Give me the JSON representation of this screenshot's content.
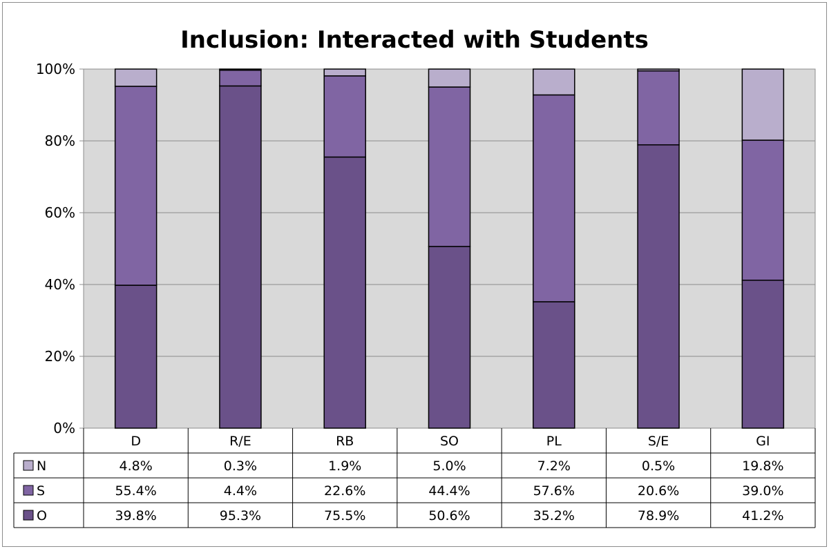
{
  "chart_data": {
    "type": "bar",
    "stacked": true,
    "percent_stacked": true,
    "title": "Inclusion: Interacted with Students",
    "xlabel": "",
    "ylabel": "",
    "ylim": [
      0,
      100
    ],
    "y_ticks": [
      "0%",
      "20%",
      "40%",
      "60%",
      "80%",
      "100%"
    ],
    "y_tick_values": [
      0,
      20,
      40,
      60,
      80,
      100
    ],
    "grid": true,
    "legend_placement": "data-table-left",
    "categories": [
      "D",
      "R/E",
      "RB",
      "SO",
      "PL",
      "S/E",
      "GI"
    ],
    "series": [
      {
        "name": "O",
        "color": "#6a5189",
        "values": [
          39.8,
          95.3,
          75.5,
          50.6,
          35.2,
          78.9,
          41.2
        ],
        "labels": [
          "39.8%",
          "95.3%",
          "75.5%",
          "50.6%",
          "35.2%",
          "78.9%",
          "41.2%"
        ]
      },
      {
        "name": "S",
        "color": "#8065a3",
        "values": [
          55.4,
          4.4,
          22.6,
          44.4,
          57.6,
          20.6,
          39.0
        ],
        "labels": [
          "55.4%",
          "4.4%",
          "22.6%",
          "44.4%",
          "57.6%",
          "20.6%",
          "39.0%"
        ]
      },
      {
        "name": "N",
        "color": "#b9aecc",
        "values": [
          4.8,
          0.3,
          1.9,
          5.0,
          7.2,
          0.5,
          19.8
        ],
        "labels": [
          "4.8%",
          "0.3%",
          "1.9%",
          "5.0%",
          "7.2%",
          "0.5%",
          "19.8%"
        ]
      }
    ],
    "table_row_order": [
      "N",
      "S",
      "O"
    ]
  }
}
